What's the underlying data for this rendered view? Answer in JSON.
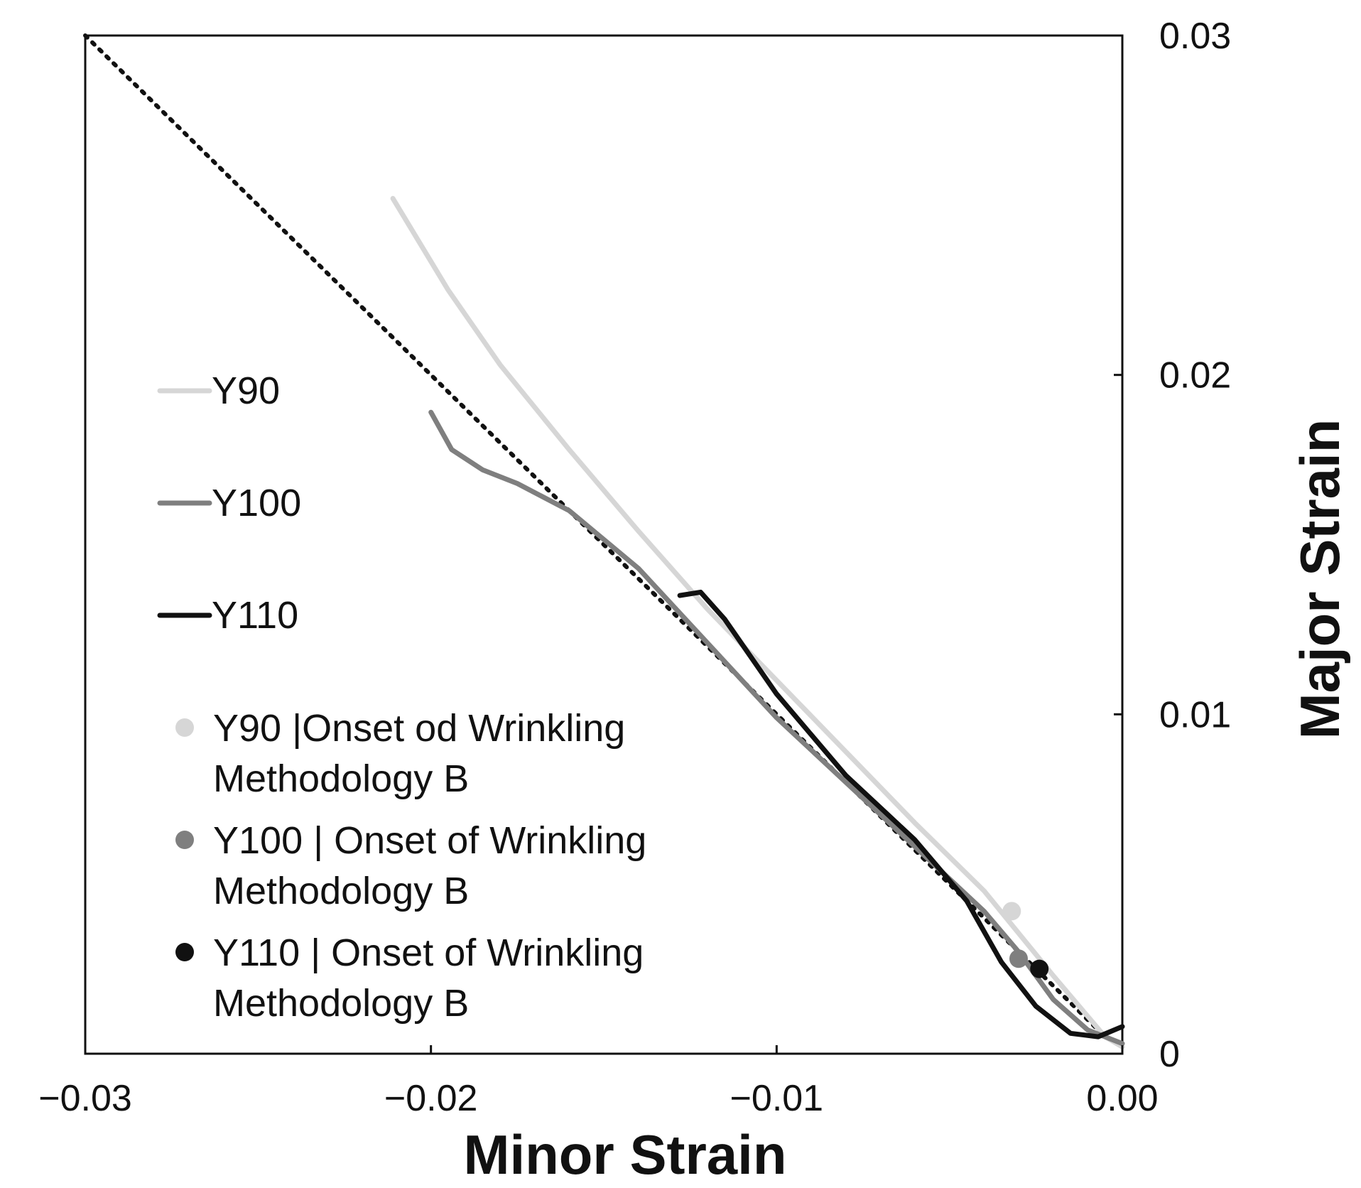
{
  "chart_data": {
    "type": "line",
    "title": "",
    "xlabel": "Minor Strain",
    "ylabel": "Major Strain",
    "xlim": [
      -0.03,
      0.0
    ],
    "ylim": [
      0,
      0.03
    ],
    "x_ticks": [
      -0.03,
      -0.02,
      -0.01,
      0.0
    ],
    "x_tick_labels": [
      "−0.03",
      "−0.02",
      "−0.01",
      "0.00"
    ],
    "y_ticks": [
      0,
      0.01,
      0.02,
      0.03
    ],
    "y_tick_labels": [
      "0",
      "0.01",
      "0.02",
      "0.03"
    ],
    "grid": false,
    "y_axis_side": "right",
    "legend_position": "left",
    "reference_line": {
      "style": "dotted",
      "color": "#111111",
      "x": [
        -0.03,
        -0.0006
      ],
      "y": [
        0.03,
        0.0006
      ]
    },
    "series": [
      {
        "name": "Y90",
        "color": "#d6d6d6",
        "x": [
          -0.0211,
          -0.0195,
          -0.018,
          -0.016,
          -0.014,
          -0.012,
          -0.01,
          -0.008,
          -0.006,
          -0.004,
          -0.002,
          -0.0005,
          0.0
        ],
        "y": [
          0.0252,
          0.0225,
          0.0203,
          0.0178,
          0.0154,
          0.0131,
          0.011,
          0.0089,
          0.0068,
          0.0048,
          0.0023,
          0.0005,
          0.0002
        ]
      },
      {
        "name": "Y100",
        "color": "#7f7f7f",
        "x": [
          -0.02,
          -0.0194,
          -0.0185,
          -0.0175,
          -0.016,
          -0.014,
          -0.012,
          -0.01,
          -0.008,
          -0.006,
          -0.004,
          -0.003,
          -0.002,
          -0.001,
          0.0
        ],
        "y": [
          0.0189,
          0.0178,
          0.0172,
          0.0168,
          0.016,
          0.0143,
          0.0121,
          0.0099,
          0.008,
          0.0061,
          0.0042,
          0.003,
          0.0016,
          0.0007,
          0.0003
        ]
      },
      {
        "name": "Y110",
        "color": "#111111",
        "x": [
          -0.0128,
          -0.0122,
          -0.0115,
          -0.01,
          -0.008,
          -0.006,
          -0.0045,
          -0.0035,
          -0.0025,
          -0.0015,
          -0.0007,
          0.0
        ],
        "y": [
          0.0135,
          0.0136,
          0.0128,
          0.0106,
          0.0082,
          0.0063,
          0.0045,
          0.0027,
          0.0014,
          0.0006,
          0.0005,
          0.0008
        ]
      }
    ],
    "points": [
      {
        "name": "Y90 |Onset od Wrinkling Methodology B",
        "line1": "Y90 |Onset od Wrinkling",
        "line2": "Methodology B",
        "color": "#d6d6d6",
        "x": -0.0032,
        "y": 0.0042
      },
      {
        "name": "Y100 | Onset of Wrinkling Methodology B",
        "line1": "Y100 | Onset of Wrinkling",
        "line2": "Methodology B",
        "color": "#7f7f7f",
        "x": -0.003,
        "y": 0.0028
      },
      {
        "name": "Y110 | Onset of Wrinkling Methodology B",
        "line1": "Y110 | Onset of Wrinkling",
        "line2": "Methodology B",
        "color": "#111111",
        "x": -0.0024,
        "y": 0.0025
      }
    ]
  }
}
